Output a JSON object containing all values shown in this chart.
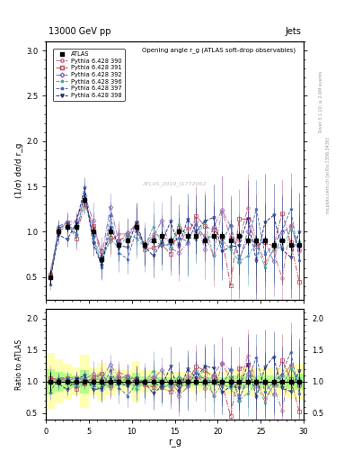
{
  "title_top": "13000 GeV pp",
  "title_right": "Jets",
  "plot_title": "Opening angle r_g (ATLAS soft-drop observables)",
  "xlabel": "r_g",
  "ylabel_main": "(1/σ) dσ/d r_g",
  "ylabel_ratio": "Ratio to ATLAS",
  "watermark": "ATLAS_2019_I1772062",
  "rivet_text": "Rivet 3.1.10; ≥ 2.6M events",
  "arxiv_text": "mcplots.cern.ch [arXiv:1306.3436]",
  "xlim": [
    0,
    30
  ],
  "ylim_main": [
    0.25,
    3.1
  ],
  "ylim_ratio": [
    0.4,
    2.15
  ],
  "x_ticks": [
    0,
    5,
    10,
    15,
    20,
    25,
    30
  ],
  "atlas_color": "#000000",
  "series": [
    {
      "label": "Pythia 6.428 390",
      "color": "#cc6688",
      "marker": "o",
      "linestyle": "-."
    },
    {
      "label": "Pythia 6.428 391",
      "color": "#bb4455",
      "marker": "s",
      "linestyle": "-."
    },
    {
      "label": "Pythia 6.428 392",
      "color": "#8866bb",
      "marker": "D",
      "linestyle": "-."
    },
    {
      "label": "Pythia 6.428 396",
      "color": "#44aa99",
      "marker": "*",
      "linestyle": "--"
    },
    {
      "label": "Pythia 6.428 397",
      "color": "#4466bb",
      "marker": "*",
      "linestyle": "--"
    },
    {
      "label": "Pythia 6.428 398",
      "color": "#112277",
      "marker": "v",
      "linestyle": "--"
    }
  ],
  "atlas_x": [
    0.5,
    1.5,
    2.5,
    3.5,
    4.5,
    5.5,
    6.5,
    7.5,
    8.5,
    9.5,
    10.5,
    11.5,
    12.5,
    13.5,
    14.5,
    15.5,
    16.5,
    17.5,
    18.5,
    19.5,
    20.5,
    21.5,
    22.5,
    23.5,
    24.5,
    25.5,
    26.5,
    27.5,
    28.5,
    29.5
  ],
  "atlas_y": [
    0.5,
    1.0,
    1.05,
    1.05,
    1.35,
    1.0,
    0.7,
    1.0,
    0.85,
    0.9,
    1.05,
    0.85,
    0.9,
    0.95,
    0.9,
    1.0,
    0.95,
    0.95,
    0.9,
    0.95,
    0.95,
    0.9,
    0.95,
    0.9,
    0.9,
    0.9,
    0.85,
    0.9,
    0.85,
    0.85
  ],
  "atlas_yerr": [
    0.08,
    0.05,
    0.05,
    0.05,
    0.06,
    0.05,
    0.05,
    0.05,
    0.05,
    0.05,
    0.05,
    0.05,
    0.05,
    0.05,
    0.05,
    0.05,
    0.05,
    0.05,
    0.05,
    0.05,
    0.05,
    0.05,
    0.05,
    0.05,
    0.05,
    0.05,
    0.05,
    0.05,
    0.06,
    0.07
  ],
  "yellow_color": "#ffff44",
  "green_color": "#44ff44",
  "band_alpha": 0.4
}
